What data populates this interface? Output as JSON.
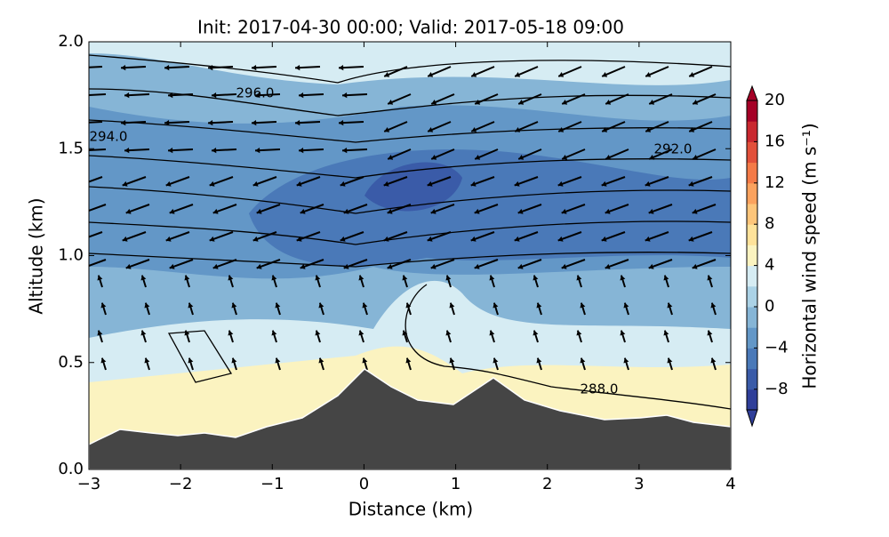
{
  "chart_data": {
    "type": "contour",
    "title": "Init: 2017-04-30 00:00; Valid: 2017-05-18 09:00",
    "x_label": "Distance (km)",
    "y_label": "Altitude (km)",
    "xlim": [
      -3,
      4
    ],
    "xticks": [
      {
        "value": -3,
        "label": "−3"
      },
      {
        "value": -2,
        "label": "−2"
      },
      {
        "value": -1,
        "label": "−1"
      },
      0,
      1,
      2,
      3,
      4
    ],
    "ylim": [
      0,
      2
    ],
    "yticks": [
      {
        "value": 0,
        "label": "0.0"
      },
      0.5,
      {
        "value": 1,
        "label": "1.0"
      },
      1.5,
      {
        "value": 2,
        "label": "2.0"
      }
    ],
    "contour_labels": [
      "296.0",
      "294.0",
      "292.0",
      "288.0"
    ],
    "colorbar": {
      "label": "Horizontal wind speed (m s⁻¹)",
      "lim": [
        -10,
        20
      ],
      "ticks": [
        {
          "value": -8,
          "label": "−8"
        },
        {
          "value": -4,
          "label": "−4"
        },
        0,
        4,
        8,
        12,
        16,
        20
      ],
      "colors": [
        "#2f3e99",
        "#3a5ba8",
        "#4a79b8",
        "#6397c7",
        "#86b5d6",
        "#abd2e6",
        "#d6ecf3",
        "#fbf3c0",
        "#fee29a",
        "#fdc57a",
        "#fba25e",
        "#f47a47",
        "#e2503a",
        "#c9282f",
        "#a50026"
      ]
    }
  }
}
